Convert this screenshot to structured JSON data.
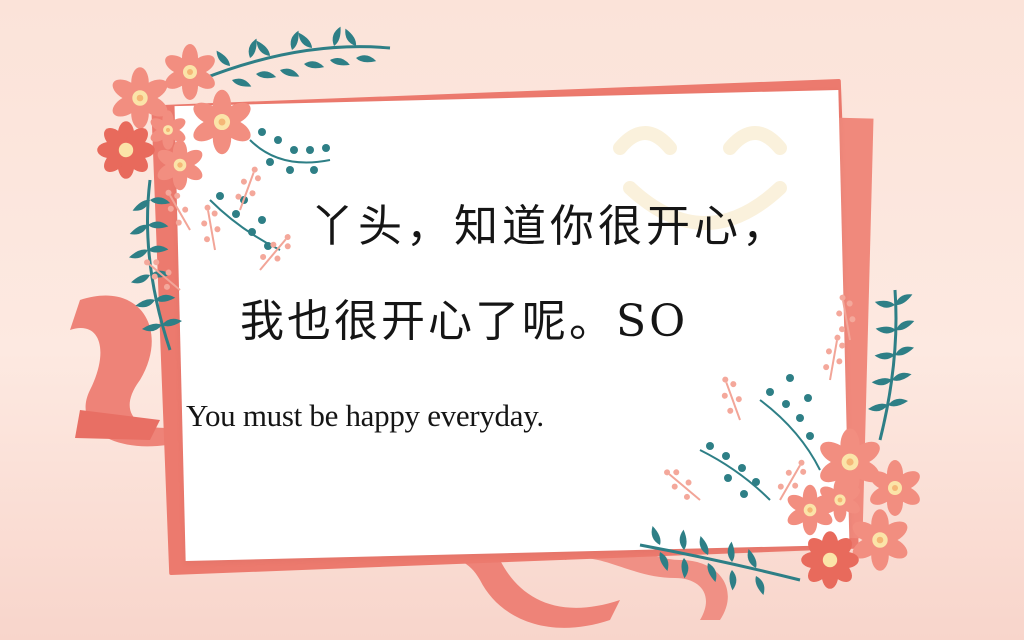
{
  "card": {
    "line1": "丫头，知道你很开心，",
    "line2": "我也很开心了呢。SO",
    "line3": "You must be happy everyday."
  },
  "decorations": {
    "ribbon_icon": "ribbon-icon",
    "flower_icon": "flower-icon",
    "leaf_icon": "leaf-icon",
    "smile_icon": "smile-icon"
  },
  "colors": {
    "background": "#fbe3d9",
    "card": "#ffffff",
    "coral": "#ec7a6e",
    "teal": "#2e7f86",
    "flower": "#f28e80",
    "flower_center": "#fbe4a8"
  }
}
